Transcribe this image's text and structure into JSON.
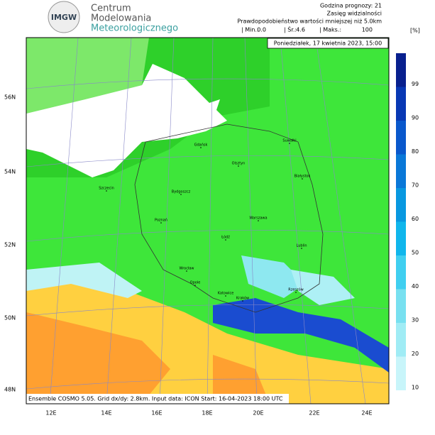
{
  "header": {
    "org": [
      "Centrum",
      "Modelowania",
      "Meteorologicznego"
    ],
    "logo": "IMGW",
    "forecast_hour": "Godzina prognozy: 21",
    "parameter": "Zasięg widzialności",
    "description": "Prawdopodobieństwo wartości mniejszej niż 5.0km",
    "stats": [
      {
        "label": "| Min.:",
        "value": "0.0"
      },
      {
        "label": "| Śr.:",
        "value": "4.6"
      },
      {
        "label": "| Maks.:",
        "value": "100"
      }
    ],
    "unit": "[%]",
    "date": "Poniedziałek, 17 kwietnia 2023, 15:00"
  },
  "footer": "Ensemble COSMO 5.05. Grid dx/dy: 2.8km. Input data: ICON Start: 16-04-2023 18:00 UTC",
  "colorbar": {
    "ticks": [
      10,
      20,
      30,
      40,
      50,
      60,
      70,
      80,
      90,
      99
    ],
    "colors": [
      "#c8f5fa",
      "#a0ecf5",
      "#78e0f0",
      "#40cff0",
      "#10b6ec",
      "#0898e0",
      "#0a78d8",
      "#0a58cc",
      "#0838b4",
      "#08208e"
    ]
  },
  "latitudes": [
    "56N",
    "54N",
    "52N",
    "50N"
  ],
  "lat_bottom": "48N",
  "longitudes": [
    "12E",
    "14E",
    "16E",
    "18E",
    "20E",
    "22E",
    "24E"
  ],
  "cities": [
    "Gdańsk",
    "Szczecin",
    "Olsztyn",
    "Suwałki",
    "Białystok",
    "Bydgoszcz",
    "Poznań",
    "Warszawa",
    "Łódź",
    "Lublin",
    "Wrocław",
    "Opole",
    "Katowice",
    "Kraków",
    "Rzeszów"
  ]
}
